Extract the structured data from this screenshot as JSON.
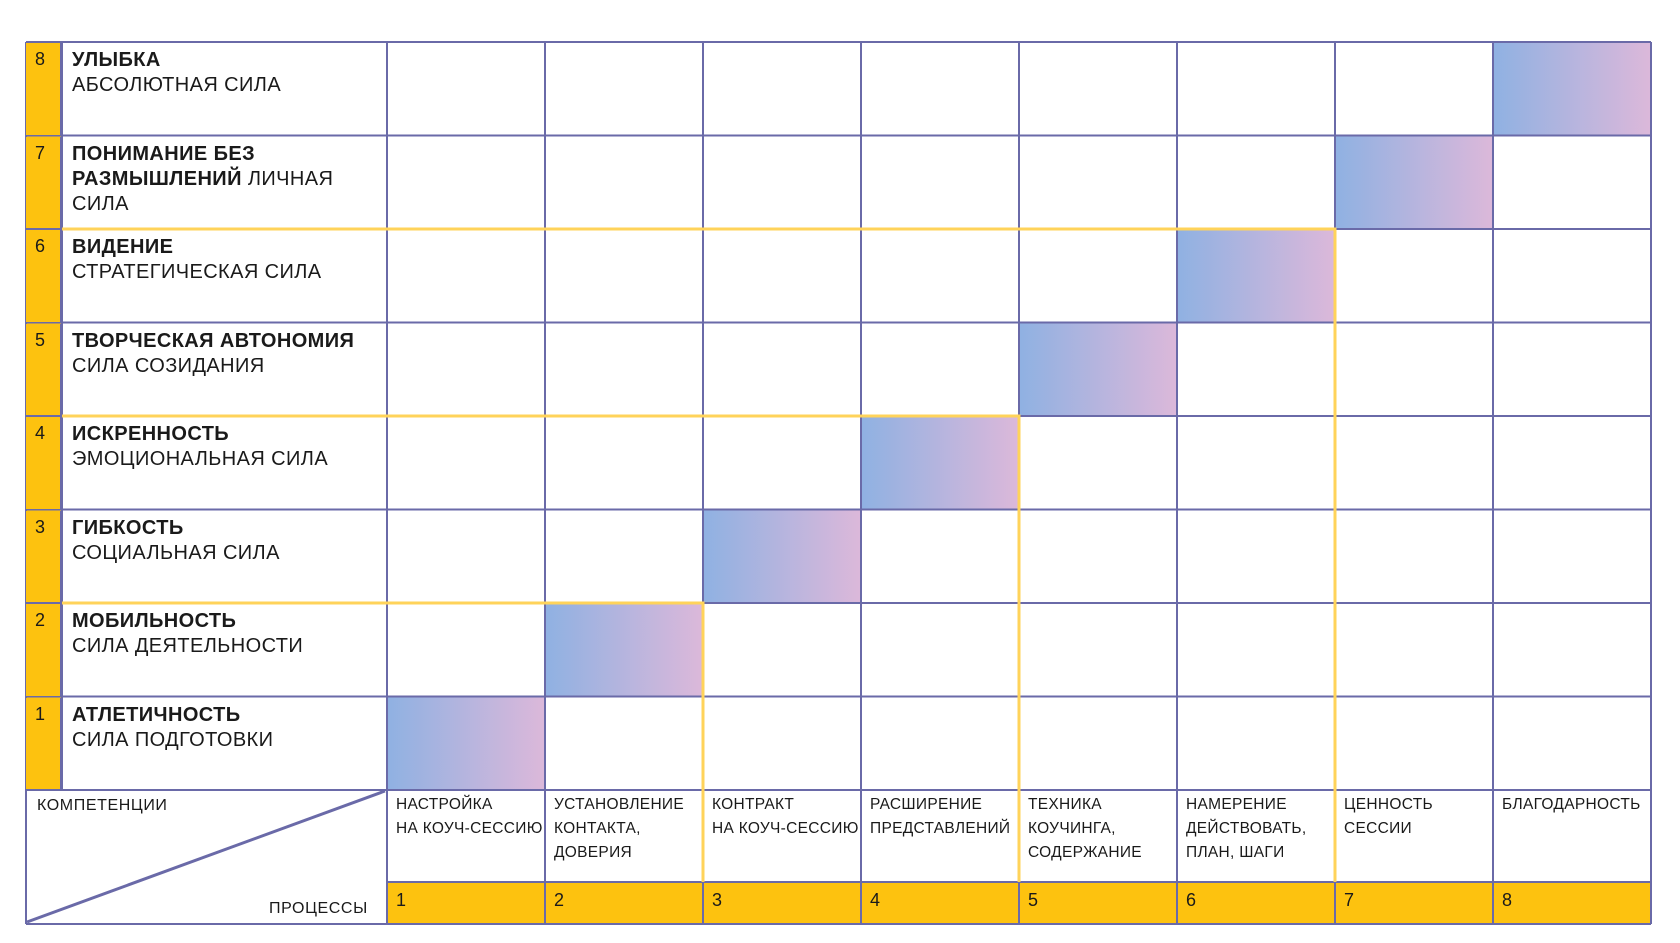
{
  "corner": {
    "top_label": "КОМПЕТЕНЦИИ",
    "bottom_label": "ПРОЦЕССЫ"
  },
  "levels": [
    {
      "number": "8",
      "name": "УЛЫБКА",
      "power": "АБСОЛЮТНАЯ СИЛА"
    },
    {
      "number": "7",
      "name": "ПОНИМАНИЕ БЕЗ РАЗМЫШЛЕНИЙ",
      "power": "ЛИЧНАЯ СИЛА"
    },
    {
      "number": "6",
      "name": "ВИДЕНИЕ",
      "power": "СТРАТЕГИЧЕСКАЯ СИЛА"
    },
    {
      "number": "5",
      "name": "ТВОРЧЕСКАЯ АВТОНОМИЯ",
      "power": "СИЛА СОЗИДАНИЯ"
    },
    {
      "number": "4",
      "name": "ИСКРЕННОСТЬ",
      "power": "ЭМОЦИОНАЛЬНАЯ СИЛА"
    },
    {
      "number": "3",
      "name": "ГИБКОСТЬ",
      "power": "СОЦИАЛЬНАЯ СИЛА"
    },
    {
      "number": "2",
      "name": "МОБИЛЬНОСТЬ",
      "power": "СИЛА ДЕЯТЕЛЬНОСТИ"
    },
    {
      "number": "1",
      "name": "АТЛЕТИЧНОСТЬ",
      "power": "СИЛА ПОДГОТОВКИ"
    }
  ],
  "processes": [
    {
      "number": "1",
      "label": "НАСТРОЙКА\nНА КОУЧ-СЕССИЮ"
    },
    {
      "number": "2",
      "label": "УСТАНОВЛЕНИЕ\nКОНТАКТА,\nДОВЕРИЯ"
    },
    {
      "number": "3",
      "label": "КОНТРАКТ\nНА КОУЧ-СЕССИЮ"
    },
    {
      "number": "4",
      "label": "РАСШИРЕНИЕ\nПРЕДСТАВЛЕНИЙ"
    },
    {
      "number": "5",
      "label": "ТЕХНИКА\nКОУЧИНГА,\nСОДЕРЖАНИЕ"
    },
    {
      "number": "6",
      "label": "НАМЕРЕНИЕ\nДЕЙСТВОВАТЬ,\nПЛАН, ШАГИ"
    },
    {
      "number": "7",
      "label": "ЦЕННОСТЬ\nСЕССИИ"
    },
    {
      "number": "8",
      "label": "БЛАГОДАРНОСТЬ"
    }
  ],
  "highlighted_cells": [
    {
      "process": 1,
      "level": 1
    },
    {
      "process": 2,
      "level": 2
    },
    {
      "process": 3,
      "level": 3
    },
    {
      "process": 4,
      "level": 4
    },
    {
      "process": 5,
      "level": 5
    },
    {
      "process": 6,
      "level": 6
    },
    {
      "process": 7,
      "level": 7
    },
    {
      "process": 8,
      "level": 8
    }
  ],
  "stage_blocks": [
    {
      "levels": [
        1,
        2
      ],
      "processes": [
        1,
        2
      ]
    },
    {
      "levels": [
        1,
        4
      ],
      "processes": [
        1,
        4
      ]
    },
    {
      "levels": [
        1,
        6
      ],
      "processes": [
        1,
        6
      ]
    }
  ],
  "colors": {
    "grid_line": "#6a6aa8",
    "accent_yellow": "#fdc20f",
    "stage_outline": "#ffd35a",
    "gradient_start": "#8fb1e2",
    "gradient_end": "#dcb8da"
  }
}
